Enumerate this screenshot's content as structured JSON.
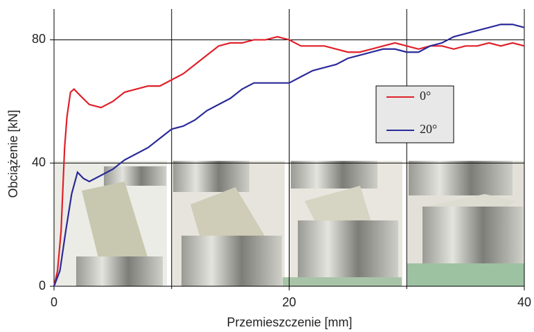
{
  "chart_data": {
    "type": "line",
    "xlabel": "Przemieszczenie [mm]",
    "ylabel": "Obciążenie [kN]",
    "xlim": [
      0,
      40
    ],
    "ylim": [
      0,
      90
    ],
    "xticks": [
      0,
      20,
      40
    ],
    "yticks": [
      0,
      40,
      80
    ],
    "xminor": [
      10,
      30
    ],
    "grid": true,
    "legend": "right",
    "series": [
      {
        "name": "0°",
        "color": "#e0202a",
        "x": [
          0,
          0.3,
          0.6,
          0.9,
          1.1,
          1.4,
          1.7,
          2.2,
          3,
          4,
          5,
          6,
          7,
          8,
          9,
          10,
          11,
          12,
          13,
          14,
          15,
          16,
          17,
          18,
          19,
          20,
          21,
          22,
          23,
          24,
          25,
          26,
          27,
          28,
          29,
          30,
          31,
          32,
          33,
          34,
          35,
          36,
          37,
          38,
          39,
          40
        ],
        "values": [
          0,
          5,
          18,
          45,
          55,
          63,
          64,
          62,
          59,
          58,
          60,
          63,
          64,
          65,
          65,
          67,
          69,
          72,
          75,
          78,
          79,
          79,
          80,
          80,
          81,
          80,
          78,
          78,
          78,
          77,
          76,
          76,
          77,
          78,
          79,
          78,
          77,
          78,
          78,
          77,
          78,
          78,
          79,
          78,
          79,
          78
        ]
      },
      {
        "name": "20°",
        "color": "#2a2a9a",
        "x": [
          0,
          0.5,
          1,
          1.5,
          2,
          2.5,
          3,
          4,
          5,
          6,
          7,
          8,
          9,
          10,
          11,
          12,
          13,
          14,
          15,
          16,
          17,
          18,
          19,
          20,
          21,
          22,
          23,
          24,
          25,
          26,
          27,
          28,
          29,
          30,
          31,
          32,
          33,
          34,
          35,
          36,
          37,
          38,
          39,
          40
        ],
        "values": [
          0,
          5,
          18,
          30,
          37,
          35,
          34,
          36,
          38,
          41,
          43,
          45,
          48,
          51,
          52,
          54,
          57,
          59,
          61,
          64,
          66,
          66,
          66,
          66,
          68,
          70,
          71,
          72,
          74,
          75,
          76,
          77,
          77,
          76,
          76,
          78,
          79,
          81,
          82,
          83,
          84,
          85,
          85,
          84
        ]
      }
    ]
  }
}
